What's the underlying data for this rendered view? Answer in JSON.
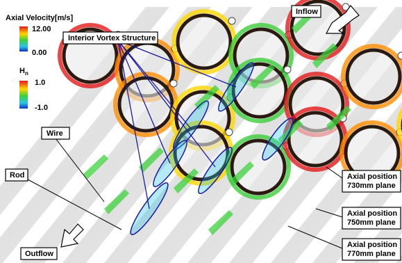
{
  "legend": {
    "velocity": {
      "title": "Axial Velocity[m/s]",
      "max": "12.00",
      "min": "0.00"
    },
    "helicity": {
      "symbol": "H",
      "subscript": "n",
      "max": "1.0",
      "min": "-1.0"
    }
  },
  "labels": {
    "vortex": "Interior Vortex Structure",
    "inflow": "Inflow",
    "wire": "Wire",
    "rod": "Rod",
    "outflow": "Outflow",
    "planes": [
      {
        "lines": [
          "Axial position",
          "730mm plane"
        ]
      },
      {
        "lines": [
          "Axial position",
          "750mm plane"
        ]
      },
      {
        "lines": [
          "Axial position",
          "770mm plane"
        ]
      }
    ]
  }
}
